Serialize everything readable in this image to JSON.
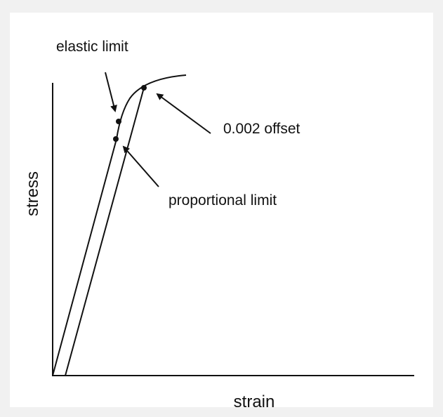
{
  "labels": {
    "elastic_limit": "elastic limit",
    "offset": "0.002 offset",
    "proportional_limit": "proportional limit"
  },
  "axes": {
    "y_label": "stress",
    "x_label": "strain"
  }
}
